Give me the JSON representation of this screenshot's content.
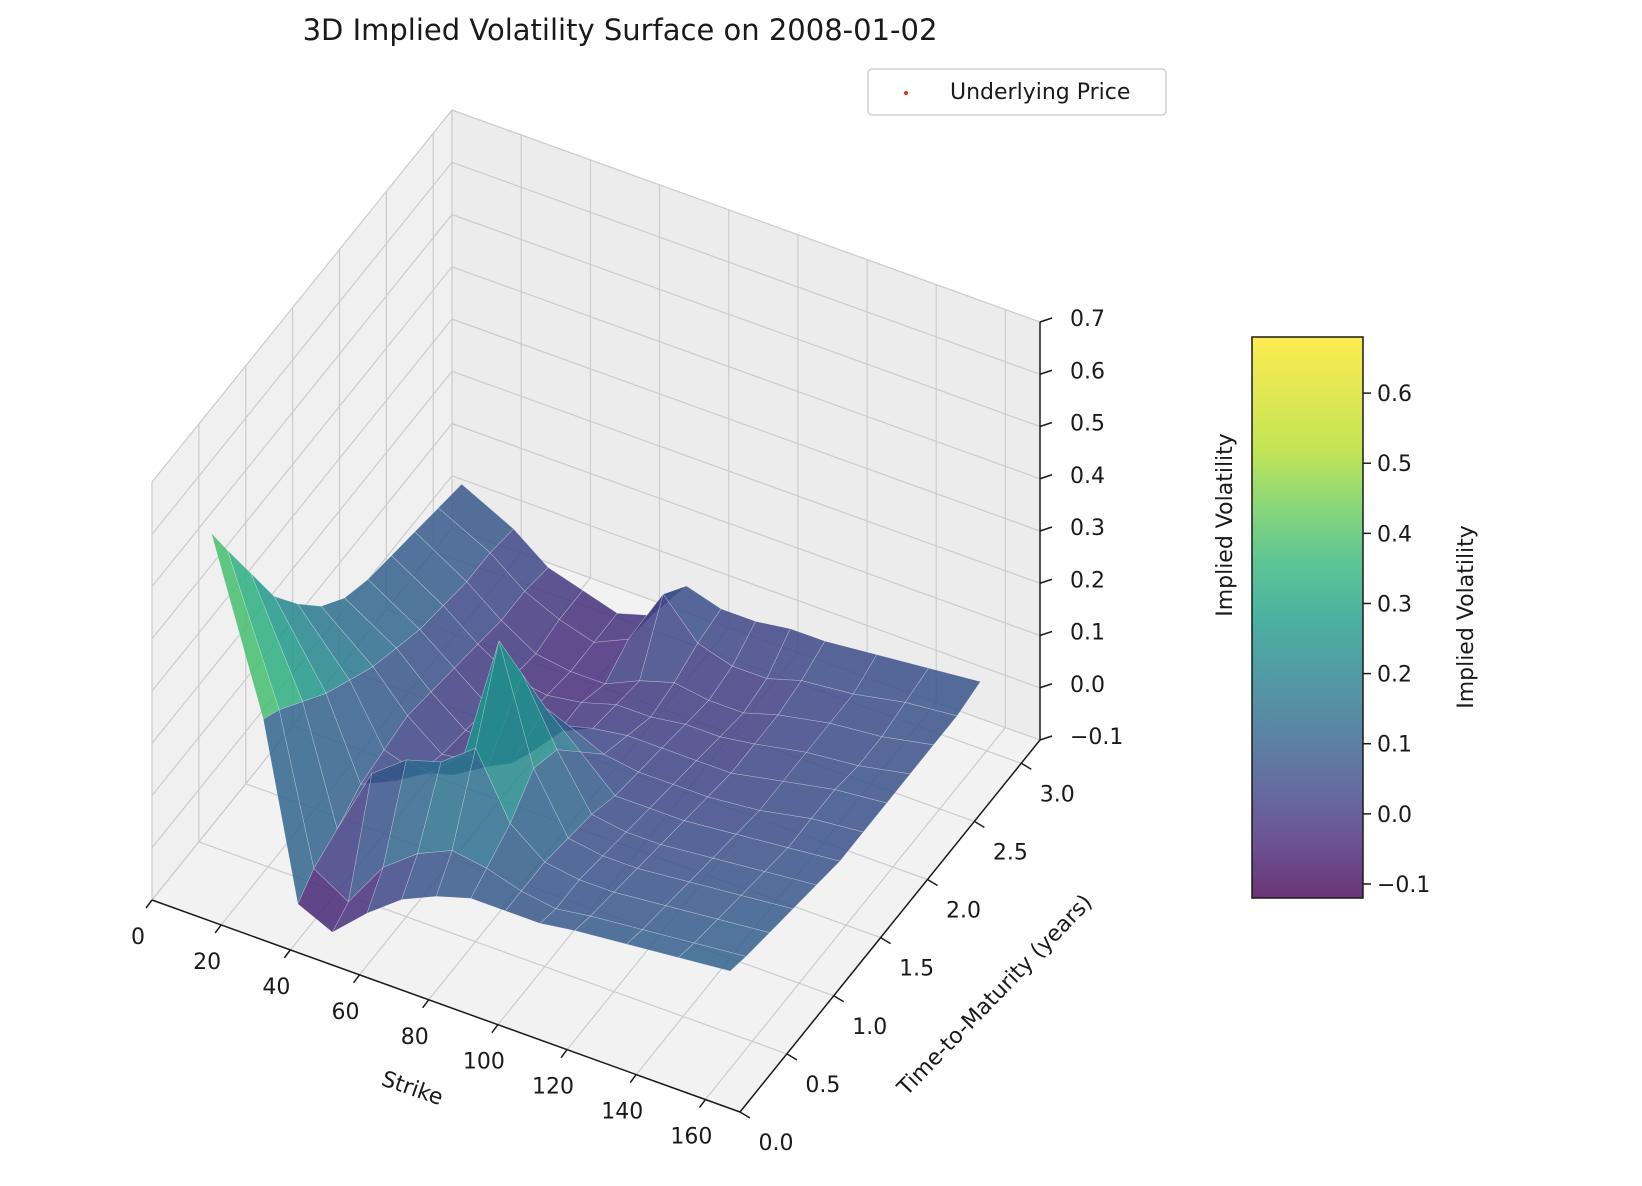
{
  "chart_data": {
    "type": "surface3d",
    "title": "3D Implied Volatility Surface on 2008-01-02",
    "xlabel": "Strike",
    "ylabel": "Time-to-Maturity (years)",
    "zlabel": "Implied Volatility",
    "xlim": [
      0,
      170
    ],
    "ylim": [
      0,
      3.2
    ],
    "zlim": [
      -0.1,
      0.7
    ],
    "x_ticks": [
      "0",
      "20",
      "40",
      "60",
      "80",
      "100",
      "120",
      "140",
      "160"
    ],
    "y_ticks": [
      "0.0",
      "0.5",
      "1.0",
      "1.5",
      "2.0",
      "2.5",
      "3.0"
    ],
    "z_ticks": [
      "−0.1",
      "0.0",
      "0.1",
      "0.2",
      "0.3",
      "0.4",
      "0.5",
      "0.6",
      "0.7"
    ],
    "colormap": "viridis",
    "colorbar": {
      "label": "Implied Volatility",
      "range": [
        -0.12,
        0.68
      ],
      "ticks": [
        "−0.1",
        "0.0",
        "0.1",
        "0.2",
        "0.3",
        "0.4",
        "0.5",
        "0.6"
      ]
    },
    "legend": {
      "position": "top-right",
      "entries": [
        {
          "label": "Underlying Price",
          "color": "#e03020",
          "marker": "point"
        }
      ]
    },
    "grid": true,
    "surface_strikes": [
      15,
      30,
      40,
      50,
      60,
      70,
      80,
      90,
      100,
      110,
      120,
      135,
      150,
      165
    ],
    "surface_maturities": [
      0.08,
      0.25,
      0.5,
      0.75,
      1.0,
      1.25,
      1.5,
      1.75,
      2.0,
      2.25,
      2.5,
      2.75
    ],
    "surface_iv": [
      [
        0.62,
        0.55,
        0.45,
        0.35,
        0.28,
        0.22,
        0.18,
        0.16,
        0.15,
        0.14,
        0.13,
        0.12
      ],
      [
        0.3,
        0.28,
        0.24,
        0.2,
        0.17,
        0.14,
        0.12,
        0.1,
        0.09,
        0.08,
        0.08,
        0.07
      ],
      [
        -0.03,
        0.0,
        0.02,
        0.05,
        0.06,
        0.07,
        0.06,
        0.05,
        0.04,
        0.03,
        0.03,
        0.02
      ],
      [
        -0.06,
        -0.04,
        0.15,
        0.08,
        0.04,
        0.02,
        0.01,
        0.0,
        0.0,
        -0.01,
        0.0,
        0.0
      ],
      [
        0.0,
        0.05,
        0.2,
        0.12,
        0.06,
        0.03,
        0.01,
        0.0,
        -0.01,
        -0.02,
        -0.02,
        -0.02
      ],
      [
        0.05,
        0.1,
        0.22,
        0.18,
        0.1,
        0.05,
        0.02,
        0.0,
        0.0,
        -0.02,
        0.01,
        0.0
      ],
      [
        0.08,
        0.13,
        0.27,
        0.42,
        0.3,
        0.18,
        0.09,
        0.03,
        0.02,
        0.01,
        0.12,
        0.08
      ],
      [
        0.1,
        0.12,
        0.15,
        0.2,
        0.18,
        0.12,
        0.06,
        0.04,
        0.02,
        0.03,
        0.05,
        0.06
      ],
      [
        0.1,
        0.1,
        0.1,
        0.09,
        0.08,
        0.06,
        0.05,
        0.04,
        0.03,
        0.02,
        0.03,
        0.06
      ],
      [
        0.1,
        0.09,
        0.09,
        0.08,
        0.07,
        0.06,
        0.05,
        0.04,
        0.03,
        0.02,
        0.03,
        0.07
      ],
      [
        0.11,
        0.1,
        0.09,
        0.08,
        0.07,
        0.06,
        0.05,
        0.04,
        0.04,
        0.04,
        0.05,
        0.07
      ],
      [
        0.12,
        0.11,
        0.1,
        0.09,
        0.08,
        0.07,
        0.06,
        0.06,
        0.06,
        0.06,
        0.06,
        0.08
      ],
      [
        0.13,
        0.12,
        0.11,
        0.1,
        0.09,
        0.08,
        0.08,
        0.08,
        0.07,
        0.07,
        0.08,
        0.09
      ],
      [
        0.14,
        0.13,
        0.12,
        0.11,
        0.1,
        0.09,
        0.09,
        0.09,
        0.09,
        0.09,
        0.09,
        0.1
      ]
    ]
  }
}
